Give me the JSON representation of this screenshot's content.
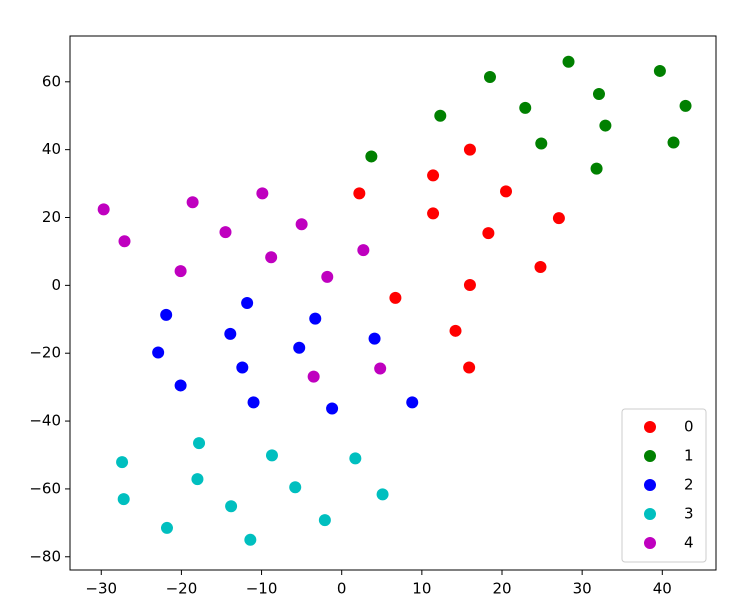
{
  "chart_data": {
    "type": "scatter",
    "xlim": [
      -33.9,
      46.7
    ],
    "ylim": [
      -83.9,
      73.5
    ],
    "xticks": [
      {
        "value": -30,
        "label": "−30"
      },
      {
        "value": -20,
        "label": "−20"
      },
      {
        "value": -10,
        "label": "−10"
      },
      0,
      10,
      20,
      30,
      40
    ],
    "yticks": [
      {
        "value": -80,
        "label": "−80"
      },
      {
        "value": -60,
        "label": "−60"
      },
      {
        "value": -40,
        "label": "−40"
      },
      {
        "value": -20,
        "label": "−20"
      },
      0,
      20,
      40,
      60
    ],
    "legend": "lower right",
    "series": [
      {
        "name": "0",
        "color": "#ff0000",
        "x": [
          2.2,
          11.4,
          16.0,
          20.5,
          11.4,
          18.3,
          27.1,
          24.8,
          16.0,
          6.7,
          14.2,
          15.9
        ],
        "y": [
          27.1,
          32.4,
          40.0,
          27.7,
          21.2,
          15.4,
          19.8,
          5.4,
          0.1,
          -3.7,
          -13.4,
          -24.2
        ]
      },
      {
        "name": "1",
        "color": "#008000",
        "x": [
          3.7,
          12.3,
          18.5,
          22.9,
          28.3,
          32.1,
          24.9,
          32.9,
          31.8,
          39.7,
          42.9,
          41.4
        ],
        "y": [
          38.0,
          50.0,
          61.4,
          52.3,
          65.9,
          56.4,
          41.8,
          47.1,
          34.4,
          63.2,
          52.9,
          42.1
        ]
      },
      {
        "name": "2",
        "color": "#0000ff",
        "x": [
          -21.9,
          -22.9,
          -20.1,
          -11.8,
          -13.9,
          -12.4,
          -11.0,
          -5.3,
          -3.3,
          -1.2,
          4.1,
          8.8
        ],
        "y": [
          -8.7,
          -19.8,
          -29.5,
          -5.2,
          -14.3,
          -24.2,
          -34.5,
          -18.4,
          -9.8,
          -36.3,
          -15.7,
          -34.5
        ]
      },
      {
        "name": "3",
        "color": "#00bfbf",
        "x": [
          -27.4,
          -27.2,
          -17.8,
          -18.0,
          -8.7,
          -13.8,
          -21.8,
          -11.4,
          -5.8,
          -2.1,
          1.7,
          5.1
        ],
        "y": [
          -52.1,
          -63.0,
          -46.5,
          -57.1,
          -50.1,
          -65.1,
          -71.5,
          -75.0,
          -59.5,
          -69.2,
          -51.0,
          -61.6
        ]
      },
      {
        "name": "4",
        "color": "#bf00bf",
        "x": [
          -29.7,
          -27.1,
          -18.6,
          -20.1,
          -14.5,
          -9.9,
          -5.0,
          -8.8,
          -1.8,
          2.7,
          -3.5,
          4.8
        ],
        "y": [
          22.4,
          13.0,
          24.5,
          4.2,
          15.7,
          27.1,
          18.0,
          8.3,
          2.5,
          10.4,
          -26.9,
          -24.5
        ]
      }
    ]
  }
}
